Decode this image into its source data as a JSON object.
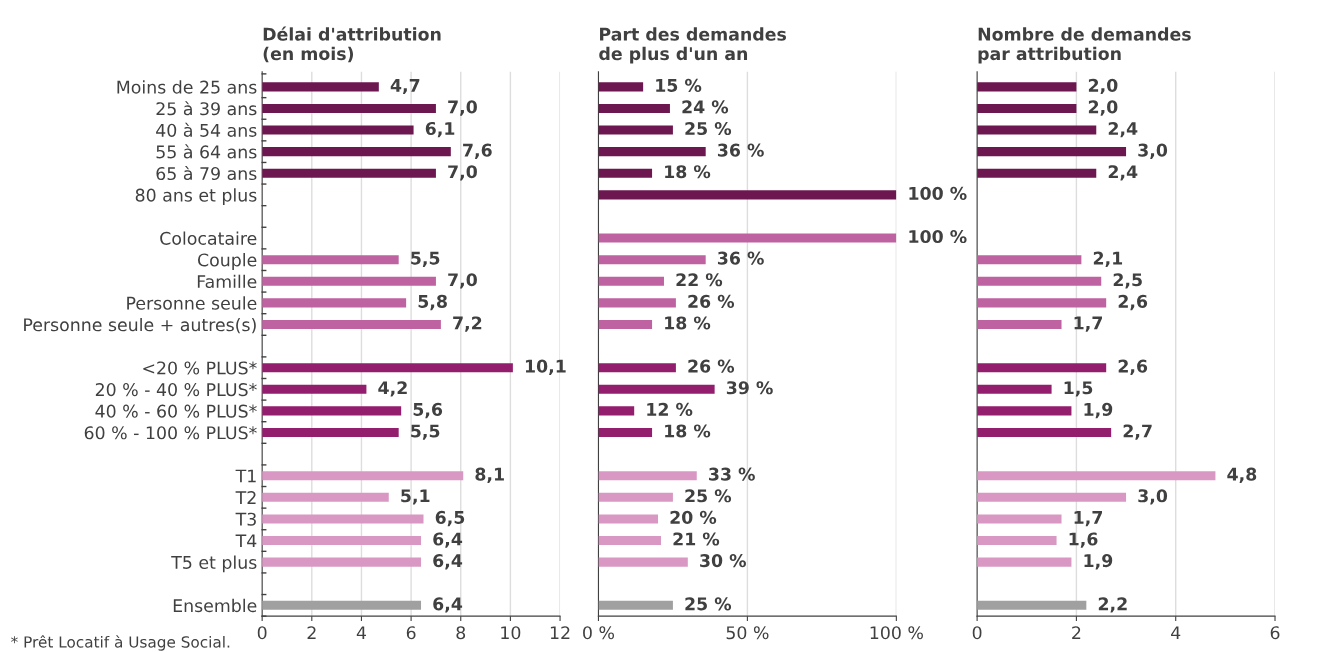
{
  "chart_data": [
    {
      "type": "bar",
      "orientation": "horizontal",
      "title": "Délai d'attribution\n(en mois)",
      "categories": [
        "Moins de 25 ans",
        "25 à 39 ans",
        "40 à 54 ans",
        "55 à 64 ans",
        "65 à 79 ans",
        "80 ans et plus",
        null,
        "Colocataire",
        "Couple",
        "Famille",
        "Personne seule",
        "Personne seule + autres(s)",
        null,
        "<20 % PLUS*",
        "20 % - 40 % PLUS*",
        "40 % - 60 % PLUS*",
        "60 % - 100 % PLUS*",
        null,
        "T1",
        "T2",
        "T3",
        "T4",
        "T5 et plus",
        null,
        "Ensemble"
      ],
      "values": [
        4.7,
        7.0,
        6.1,
        7.6,
        7.0,
        null,
        null,
        null,
        5.5,
        7.0,
        5.8,
        7.2,
        null,
        10.1,
        4.2,
        5.6,
        5.5,
        null,
        8.1,
        5.1,
        6.5,
        6.4,
        6.4,
        null,
        6.4
      ],
      "value_labels": [
        "4,7",
        "7,0",
        "6,1",
        "7,6",
        "7,0",
        null,
        null,
        null,
        "5,5",
        "7,0",
        "5,8",
        "7,2",
        null,
        "10,1",
        "4,2",
        "5,6",
        "5,5",
        null,
        "8,1",
        "5,1",
        "6,5",
        "6,4",
        "6,4",
        null,
        "6,4"
      ],
      "colors": [
        "#6d1750",
        "#6d1750",
        "#6d1750",
        "#6d1750",
        "#6d1750",
        "#6d1750",
        null,
        "#bf62a2",
        "#bf62a2",
        "#bf62a2",
        "#bf62a2",
        "#bf62a2",
        null,
        "#941e6e",
        "#941e6e",
        "#941e6e",
        "#941e6e",
        null,
        "#d998c4",
        "#d998c4",
        "#d998c4",
        "#d998c4",
        "#d998c4",
        null,
        "#a0a0a0"
      ],
      "xlim": [
        0,
        12
      ],
      "xticks": [
        0,
        2,
        4,
        6,
        8,
        10,
        12
      ],
      "grid": "x",
      "annotations": [
        "* Prêt Locatif à Usage Social."
      ]
    },
    {
      "type": "bar",
      "orientation": "horizontal",
      "title": "Part des demandes\nde plus d'un an",
      "categories": [
        null,
        null,
        null,
        null,
        null,
        null,
        null,
        null,
        null,
        null,
        null,
        null,
        null,
        null,
        null,
        null,
        null,
        null,
        null,
        null,
        null,
        null,
        null,
        null,
        null
      ],
      "values": [
        15,
        24,
        25,
        36,
        18,
        100,
        null,
        100,
        36,
        22,
        26,
        18,
        null,
        26,
        39,
        12,
        18,
        null,
        33,
        25,
        20,
        21,
        30,
        null,
        25
      ],
      "value_labels": [
        "15 %",
        "24 %",
        "25 %",
        "36 %",
        "18 %",
        "100 %",
        null,
        "100 %",
        "36 %",
        "22 %",
        "26 %",
        "18 %",
        null,
        "26 %",
        "39 %",
        "12 %",
        "18 %",
        null,
        "33 %",
        "25 %",
        "20 %",
        "21 %",
        "30 %",
        null,
        "25 %"
      ],
      "colors": [
        "#6d1750",
        "#6d1750",
        "#6d1750",
        "#6d1750",
        "#6d1750",
        "#6d1750",
        null,
        "#bf62a2",
        "#bf62a2",
        "#bf62a2",
        "#bf62a2",
        "#bf62a2",
        null,
        "#941e6e",
        "#941e6e",
        "#941e6e",
        "#941e6e",
        null,
        "#d998c4",
        "#d998c4",
        "#d998c4",
        "#d998c4",
        "#d998c4",
        null,
        "#a0a0a0"
      ],
      "xlim": [
        0,
        100
      ],
      "xticks": [
        {
          "value": 0,
          "label": "0 %"
        },
        {
          "value": 50,
          "label": "50 %"
        },
        {
          "value": 100,
          "label": "100 %"
        }
      ],
      "grid": "x",
      "tick_labels": "x"
    },
    {
      "type": "bar",
      "orientation": "horizontal",
      "title": "Nombre de demandes\npar attribution",
      "categories": [
        null,
        null,
        null,
        null,
        null,
        null,
        null,
        null,
        null,
        null,
        null,
        null,
        null,
        null,
        null,
        null,
        null,
        null,
        null,
        null,
        null,
        null,
        null,
        null,
        null
      ],
      "values": [
        2.0,
        2.0,
        2.4,
        3.0,
        2.4,
        null,
        null,
        null,
        2.1,
        2.5,
        2.6,
        1.7,
        null,
        2.6,
        1.5,
        1.9,
        2.7,
        null,
        4.8,
        3.0,
        1.7,
        1.6,
        1.9,
        null,
        2.2
      ],
      "value_labels": [
        "2,0",
        "2,0",
        "2,4",
        "3,0",
        "2,4",
        null,
        null,
        null,
        "2,1",
        "2,5",
        "2,6",
        "1,7",
        null,
        "2,6",
        "1,5",
        "1,9",
        "2,7",
        null,
        "4,8",
        "3,0",
        "1,7",
        "1,6",
        "1,9",
        null,
        "2,2"
      ],
      "colors": [
        "#6d1750",
        "#6d1750",
        "#6d1750",
        "#6d1750",
        "#6d1750",
        "#6d1750",
        null,
        "#bf62a2",
        "#bf62a2",
        "#bf62a2",
        "#bf62a2",
        "#bf62a2",
        null,
        "#941e6e",
        "#941e6e",
        "#941e6e",
        "#941e6e",
        null,
        "#d998c4",
        "#d998c4",
        "#d998c4",
        "#d998c4",
        "#d998c4",
        null,
        "#a0a0a0"
      ],
      "xlim": [
        0,
        6
      ],
      "xticks": [
        0,
        2,
        4,
        6
      ],
      "grid": "x",
      "tick_labels": "x"
    }
  ]
}
